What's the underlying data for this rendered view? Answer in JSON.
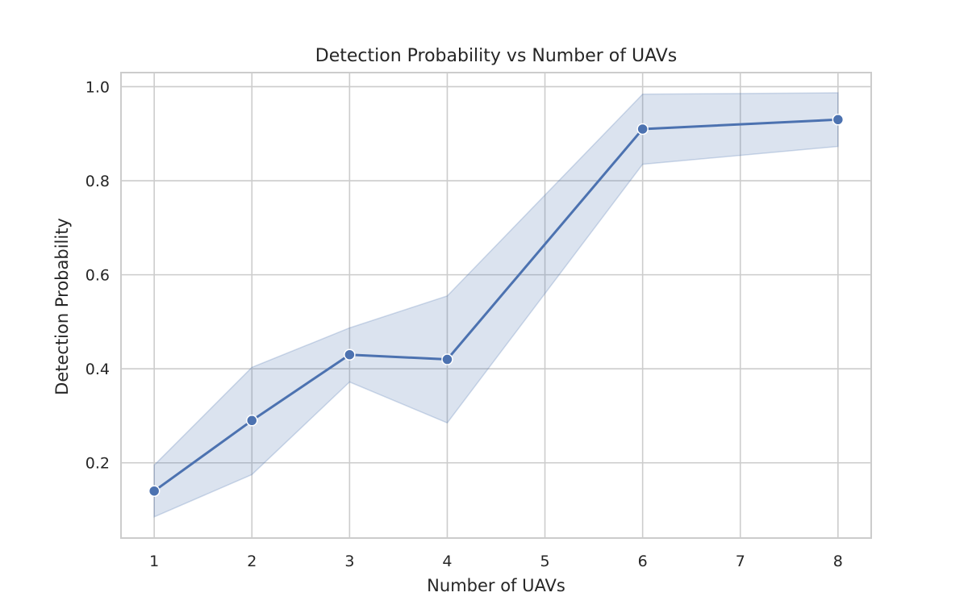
{
  "chart_data": {
    "type": "line",
    "title": "Detection Probability vs Number of UAVs",
    "xlabel": "Number of UAVs",
    "ylabel": "Detection Probability",
    "xlim": [
      0.66,
      8.34
    ],
    "ylim": [
      0.04,
      1.03
    ],
    "x_ticks": [
      "1",
      "2",
      "3",
      "4",
      "5",
      "6",
      "7",
      "8"
    ],
    "y_ticks": [
      "0.2",
      "0.4",
      "0.6",
      "0.8",
      "1.0"
    ],
    "grid": true,
    "series": [
      {
        "x": [
          1,
          2,
          3,
          4,
          6,
          8
        ],
        "y": [
          0.14,
          0.29,
          0.43,
          0.42,
          0.91,
          0.93
        ],
        "ci_lower": [
          0.085,
          0.175,
          0.372,
          0.285,
          0.835,
          0.873
        ],
        "ci_upper": [
          0.195,
          0.403,
          0.487,
          0.555,
          0.984,
          0.987
        ],
        "color": "#4c72b0",
        "marker": "circle"
      }
    ]
  }
}
